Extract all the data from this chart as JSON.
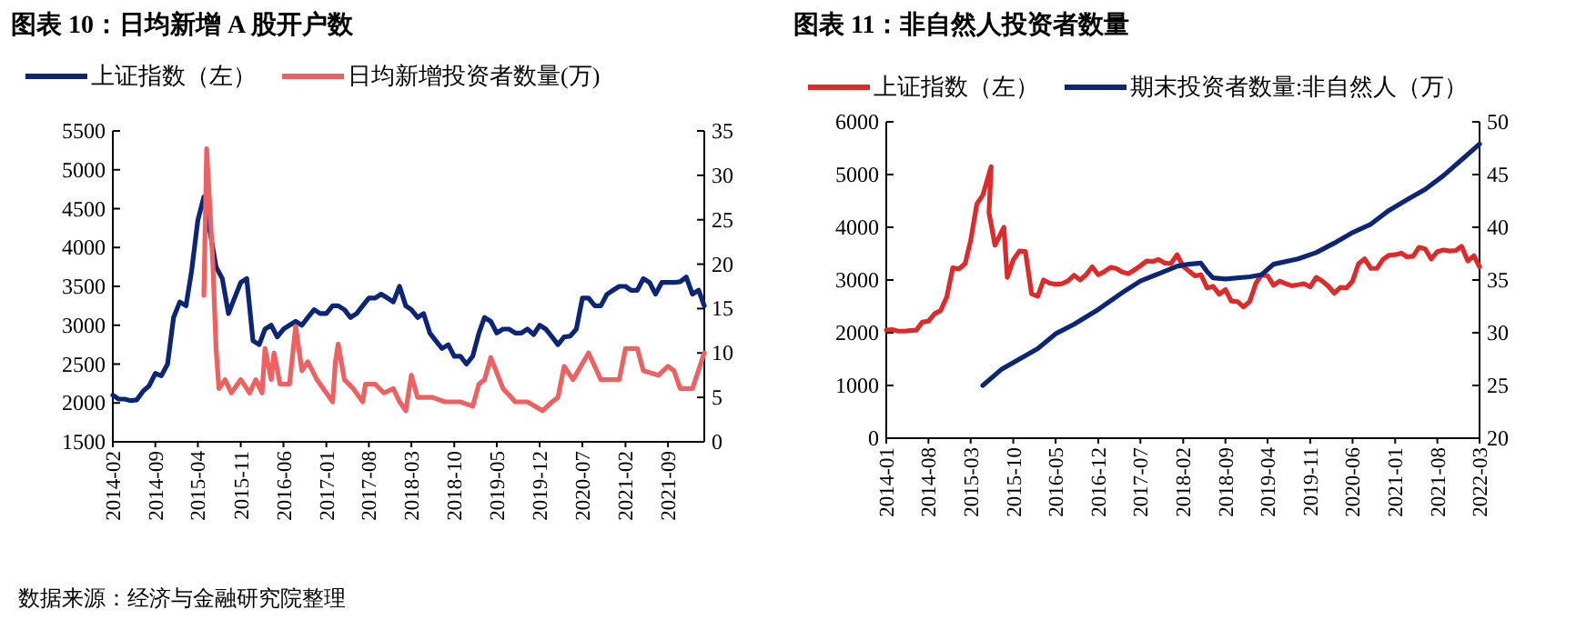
{
  "chart_data": [
    {
      "type": "line",
      "title": "图表 10：日均新增 A 股开户数",
      "legend": "top",
      "xlim": [
        "2014-02",
        "2022-03"
      ],
      "xticks": [
        "2014-02",
        "2014-09",
        "2015-04",
        "2015-11",
        "2016-06",
        "2017-01",
        "2017-08",
        "2018-03",
        "2018-10",
        "2019-05",
        "2019-12",
        "2020-07",
        "2021-02",
        "2021-09"
      ],
      "ylim": [
        1500,
        5500
      ],
      "yticks": [
        1500,
        2000,
        2500,
        3000,
        3500,
        4000,
        4500,
        5000,
        5500
      ],
      "y2lim": [
        0,
        35
      ],
      "y2ticks": [
        0,
        5,
        10,
        15,
        20,
        25,
        30,
        35
      ],
      "annotations": [
        "数据来源：经济与金融研究院整理"
      ],
      "series": [
        {
          "name": "上证指数（左）",
          "color": "#0c2577",
          "x": [
            "2014-02",
            "2014-03",
            "2014-04",
            "2014-05",
            "2014-06",
            "2014-07",
            "2014-08",
            "2014-09",
            "2014-10",
            "2014-11",
            "2014-12",
            "2015-01",
            "2015-02",
            "2015-03",
            "2015-04",
            "2015-05",
            "2015-06",
            "2015-07",
            "2015-08",
            "2015-09",
            "2015-10",
            "2015-11",
            "2015-12",
            "2016-01",
            "2016-02",
            "2016-03",
            "2016-04",
            "2016-05",
            "2016-06",
            "2016-07",
            "2016-08",
            "2016-09",
            "2016-10",
            "2016-11",
            "2016-12",
            "2017-01",
            "2017-02",
            "2017-03",
            "2017-04",
            "2017-05",
            "2017-06",
            "2017-07",
            "2017-08",
            "2017-09",
            "2017-10",
            "2017-11",
            "2017-12",
            "2018-01",
            "2018-02",
            "2018-03",
            "2018-04",
            "2018-05",
            "2018-06",
            "2018-07",
            "2018-08",
            "2018-09",
            "2018-10",
            "2018-11",
            "2018-12",
            "2019-01",
            "2019-02",
            "2019-03",
            "2019-04",
            "2019-05",
            "2019-06",
            "2019-07",
            "2019-08",
            "2019-09",
            "2019-10",
            "2019-11",
            "2019-12",
            "2020-01",
            "2020-02",
            "2020-03",
            "2020-04",
            "2020-05",
            "2020-06",
            "2020-07",
            "2020-08",
            "2020-09",
            "2020-10",
            "2020-11",
            "2020-12",
            "2021-01",
            "2021-02",
            "2021-03",
            "2021-04",
            "2021-05",
            "2021-06",
            "2021-07",
            "2021-08",
            "2021-09",
            "2021-10",
            "2021-11",
            "2021-12",
            "2022-01",
            "2022-02",
            "2022-03"
          ],
          "values": [
            2100,
            2050,
            2050,
            2030,
            2040,
            2150,
            2220,
            2380,
            2350,
            2500,
            3100,
            3300,
            3250,
            3700,
            4350,
            4650,
            4200,
            3750,
            3600,
            3150,
            3350,
            3550,
            3600,
            2800,
            2750,
            2950,
            3000,
            2850,
            2950,
            3000,
            3050,
            3000,
            3100,
            3200,
            3150,
            3150,
            3250,
            3250,
            3200,
            3100,
            3150,
            3250,
            3350,
            3350,
            3400,
            3350,
            3300,
            3500,
            3250,
            3200,
            3100,
            3150,
            2900,
            2800,
            2700,
            2750,
            2600,
            2600,
            2500,
            2600,
            2900,
            3100,
            3050,
            2900,
            2950,
            2950,
            2900,
            2900,
            2950,
            2880,
            3000,
            2950,
            2850,
            2750,
            2850,
            2860,
            2950,
            3350,
            3350,
            3250,
            3250,
            3400,
            3450,
            3500,
            3500,
            3450,
            3450,
            3600,
            3550,
            3400,
            3550,
            3550,
            3550,
            3560,
            3620,
            3400,
            3450,
            3250
          ]
        },
        {
          "name": "日均新增投资者数量(万)",
          "color": "#f06060",
          "axis": "y2",
          "x": [
            "2015-05",
            "2015-05-15",
            "2015-06-15",
            "2015-07",
            "2015-07-15",
            "2015-08-15",
            "2015-09-15",
            "2015-11",
            "2015-12-15",
            "2016-01-15",
            "2016-02-15",
            "2016-03",
            "2016-04",
            "2016-04-15",
            "2016-05-15",
            "2016-07",
            "2016-08",
            "2016-09",
            "2016-10",
            "2016-11-15",
            "2017-01",
            "2017-02",
            "2017-02-15",
            "2017-03",
            "2017-04",
            "2017-05-15",
            "2017-07",
            "2017-07-15",
            "2017-09",
            "2017-10-15",
            "2017-12",
            "2018-01",
            "2018-02",
            "2018-03",
            "2018-04",
            "2018-06-15",
            "2018-08-15",
            "2018-11",
            "2019-01",
            "2019-02",
            "2019-03",
            "2019-04",
            "2019-06",
            "2019-08",
            "2019-10",
            "2019-12-15",
            "2020-02",
            "2020-03",
            "2020-04",
            "2020-05-15",
            "2020-08",
            "2020-10",
            "2021-01",
            "2021-02",
            "2021-04",
            "2021-05",
            "2021-07-15",
            "2021-09",
            "2021-10",
            "2021-11",
            "2022-01",
            "2022-03"
          ],
          "values": [
            16.5,
            33,
            20,
            10.5,
            6,
            7,
            5.5,
            7,
            5.5,
            7,
            5.5,
            10.5,
            7,
            10,
            6.5,
            6.5,
            13,
            8,
            9,
            7,
            5.5,
            4.5,
            9,
            11,
            7,
            6,
            4.5,
            6.5,
            6.5,
            5.5,
            6,
            4.5,
            3.5,
            7.5,
            5,
            5,
            4.5,
            4.5,
            4,
            6.5,
            7,
            9.5,
            6,
            4.5,
            4.5,
            3.5,
            4.5,
            5,
            8.5,
            7,
            10,
            7,
            7,
            10.5,
            10.5,
            8,
            7.5,
            8.5,
            8,
            6,
            6,
            10
          ]
        }
      ]
    },
    {
      "type": "line",
      "title": "图表 11：非自然人投资者数量",
      "legend": "top",
      "xlim": [
        "2014-01",
        "2022-03"
      ],
      "xticks": [
        "2014-01",
        "2014-08",
        "2015-03",
        "2015-10",
        "2016-05",
        "2016-12",
        "2017-07",
        "2018-02",
        "2018-09",
        "2019-04",
        "2019-11",
        "2020-06",
        "2021-01",
        "2021-08",
        "2022-03"
      ],
      "ylim": [
        0,
        6000
      ],
      "yticks": [
        0,
        1000,
        2000,
        3000,
        4000,
        5000,
        6000
      ],
      "y2lim": [
        20,
        50
      ],
      "y2ticks": [
        20,
        25,
        30,
        35,
        40,
        45,
        50
      ],
      "series": [
        {
          "name": "上证指数（左）",
          "color": "#e02a2a",
          "x": [
            "2014-01",
            "2014-02",
            "2014-03",
            "2014-04",
            "2014-05",
            "2014-06",
            "2014-07",
            "2014-08",
            "2014-09",
            "2014-10",
            "2014-11",
            "2014-12",
            "2015-01",
            "2015-02",
            "2015-03",
            "2015-04",
            "2015-05",
            "2015-06-12",
            "2015-06",
            "2015-07",
            "2015-08-15",
            "2015-09",
            "2015-10",
            "2015-11",
            "2015-12",
            "2016-01",
            "2016-02",
            "2016-03",
            "2016-04",
            "2016-05",
            "2016-06",
            "2016-07",
            "2016-08",
            "2016-09",
            "2016-10",
            "2016-11",
            "2016-12",
            "2017-01",
            "2017-02",
            "2017-03",
            "2017-04",
            "2017-05",
            "2017-06",
            "2017-07",
            "2017-08",
            "2017-09",
            "2017-10",
            "2017-11",
            "2017-12",
            "2018-01",
            "2018-02",
            "2018-03",
            "2018-04",
            "2018-05",
            "2018-06",
            "2018-07",
            "2018-08",
            "2018-09",
            "2018-10",
            "2018-11",
            "2018-12",
            "2019-01",
            "2019-02",
            "2019-03",
            "2019-04",
            "2019-05",
            "2019-06",
            "2019-07",
            "2019-08",
            "2019-09",
            "2019-10",
            "2019-11",
            "2019-12",
            "2020-01",
            "2020-02",
            "2020-03",
            "2020-04",
            "2020-05",
            "2020-06",
            "2020-07",
            "2020-08",
            "2020-09",
            "2020-10",
            "2020-11",
            "2020-12",
            "2021-01",
            "2021-02",
            "2021-03",
            "2021-04",
            "2021-05",
            "2021-06",
            "2021-07",
            "2021-08",
            "2021-09",
            "2021-10",
            "2021-11",
            "2021-12",
            "2022-01",
            "2022-02",
            "2022-03"
          ],
          "values": [
            2050,
            2060,
            2030,
            2030,
            2040,
            2050,
            2200,
            2220,
            2360,
            2420,
            2680,
            3230,
            3210,
            3310,
            3750,
            4440,
            4610,
            5150,
            4280,
            3660,
            4000,
            3050,
            3380,
            3550,
            3540,
            2740,
            2690,
            3000,
            2940,
            2920,
            2930,
            2980,
            3090,
            3000,
            3100,
            3250,
            3100,
            3160,
            3240,
            3220,
            3150,
            3120,
            3190,
            3270,
            3360,
            3350,
            3390,
            3320,
            3310,
            3480,
            3260,
            3170,
            3080,
            3100,
            2850,
            2880,
            2730,
            2820,
            2600,
            2590,
            2490,
            2590,
            2940,
            3090,
            3080,
            2900,
            2980,
            2930,
            2890,
            2910,
            2930,
            2870,
            3050,
            2980,
            2880,
            2750,
            2860,
            2850,
            2980,
            3310,
            3400,
            3220,
            3220,
            3390,
            3470,
            3480,
            3510,
            3440,
            3450,
            3620,
            3590,
            3400,
            3540,
            3570,
            3550,
            3560,
            3640,
            3360,
            3460,
            3250
          ]
        },
        {
          "name": "期末投资者数量:非自然人（万）",
          "color": "#0c2577",
          "axis": "y2",
          "x": [
            "2015-05",
            "2015-08",
            "2015-11",
            "2016-02",
            "2016-05",
            "2016-08",
            "2016-12",
            "2017-04",
            "2017-07",
            "2017-10",
            "2018-01",
            "2018-03",
            "2018-05",
            "2018-06",
            "2018-07",
            "2018-09",
            "2019-01",
            "2019-03",
            "2019-05",
            "2019-09",
            "2019-12",
            "2020-03",
            "2020-06",
            "2020-09",
            "2020-12",
            "2021-03",
            "2021-06",
            "2021-09",
            "2021-12",
            "2022-03"
          ],
          "values": [
            25,
            26.5,
            27.5,
            28.5,
            29.9,
            30.8,
            32.2,
            33.8,
            34.9,
            35.6,
            36.3,
            36.5,
            36.6,
            35.8,
            35.2,
            35.1,
            35.3,
            35.5,
            36.5,
            37,
            37.6,
            38.5,
            39.5,
            40.3,
            41.6,
            42.6,
            43.6,
            44.9,
            46.4,
            47.9
          ]
        }
      ]
    }
  ]
}
